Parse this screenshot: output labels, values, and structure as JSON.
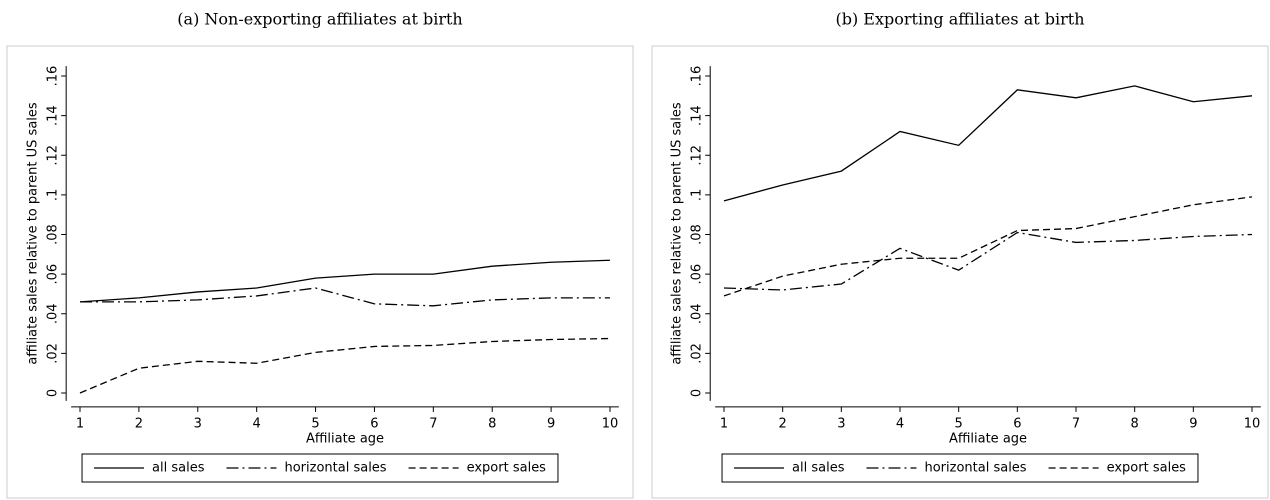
{
  "chart_data": [
    {
      "type": "line",
      "title": "(a) Non-exporting affiliates at birth",
      "xlabel": "Affiliate age",
      "ylabel": "affiliate sales relative to parent US sales",
      "x": [
        1,
        2,
        3,
        4,
        5,
        6,
        7,
        8,
        9,
        10
      ],
      "series": [
        {
          "name": "all sales",
          "color": "#000000",
          "dash": "solid",
          "values": [
            0.046,
            0.048,
            0.051,
            0.053,
            0.058,
            0.06,
            0.06,
            0.064,
            0.066,
            0.067
          ]
        },
        {
          "name": "horizontal sales",
          "color": "#000000",
          "dash": "dashdot",
          "values": [
            0.046,
            0.046,
            0.047,
            0.049,
            0.053,
            0.045,
            0.044,
            0.047,
            0.048,
            0.048
          ]
        },
        {
          "name": "export sales",
          "color": "#000000",
          "dash": "dash",
          "values": [
            0.0,
            0.0125,
            0.016,
            0.015,
            0.0205,
            0.0235,
            0.024,
            0.026,
            0.027,
            0.0275
          ]
        }
      ],
      "xlim": [
        0.85,
        10.15
      ],
      "ylim": [
        -0.004,
        0.165
      ],
      "xticks": [
        1,
        2,
        3,
        4,
        5,
        6,
        7,
        8,
        9,
        10
      ],
      "yticks": [
        0,
        {
          "value": 0.02,
          "label": ".02"
        },
        {
          "value": 0.04,
          "label": ".04"
        },
        {
          "value": 0.06,
          "label": ".06"
        },
        {
          "value": 0.08,
          "label": ".08"
        },
        {
          "value": 0.1,
          "label": ".1"
        },
        {
          "value": 0.12,
          "label": ".12"
        },
        {
          "value": 0.14,
          "label": ".14"
        },
        {
          "value": 0.16,
          "label": ".16"
        }
      ],
      "grid": false,
      "legend": "bottom"
    },
    {
      "type": "line",
      "title": "(b) Exporting affiliates at birth",
      "xlabel": "Affiliate age",
      "ylabel": "affiliate sales relative to parent US sales",
      "x": [
        1,
        2,
        3,
        4,
        5,
        6,
        7,
        8,
        9,
        10
      ],
      "series": [
        {
          "name": "all sales",
          "color": "#000000",
          "dash": "solid",
          "values": [
            0.097,
            0.105,
            0.112,
            0.132,
            0.125,
            0.153,
            0.149,
            0.155,
            0.147,
            0.15
          ]
        },
        {
          "name": "horizontal sales",
          "color": "#000000",
          "dash": "dashdot",
          "values": [
            0.053,
            0.052,
            0.055,
            0.073,
            0.062,
            0.081,
            0.076,
            0.077,
            0.079,
            0.08
          ]
        },
        {
          "name": "export sales",
          "color": "#000000",
          "dash": "dash",
          "values": [
            0.049,
            0.059,
            0.065,
            0.068,
            0.068,
            0.082,
            0.083,
            0.089,
            0.095,
            0.099
          ]
        }
      ],
      "xlim": [
        0.85,
        10.15
      ],
      "ylim": [
        -0.004,
        0.165
      ],
      "xticks": [
        1,
        2,
        3,
        4,
        5,
        6,
        7,
        8,
        9,
        10
      ],
      "yticks": [
        0,
        {
          "value": 0.02,
          "label": ".02"
        },
        {
          "value": 0.04,
          "label": ".04"
        },
        {
          "value": 0.06,
          "label": ".06"
        },
        {
          "value": 0.08,
          "label": ".08"
        },
        {
          "value": 0.1,
          "label": ".1"
        },
        {
          "value": 0.12,
          "label": ".12"
        },
        {
          "value": 0.14,
          "label": ".14"
        },
        {
          "value": 0.16,
          "label": ".16"
        }
      ],
      "grid": false,
      "legend": "bottom"
    }
  ]
}
